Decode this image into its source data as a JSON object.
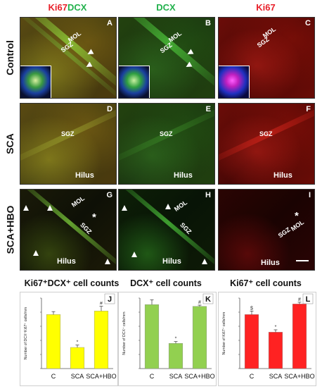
{
  "column_headers": {
    "merge": {
      "ki67": "Ki67",
      "dcx": "DCX"
    },
    "dcx": "DCX",
    "ki67": "Ki67"
  },
  "rows": [
    "Control",
    "SCA",
    "SCA+HBO"
  ],
  "panels": {
    "A": {
      "letter": "A",
      "labels": [
        "MOL",
        "SGZ"
      ]
    },
    "B": {
      "letter": "B",
      "labels": [
        "MOL",
        "SGZ"
      ]
    },
    "C": {
      "letter": "C",
      "labels": [
        "MOL",
        "SGZ"
      ]
    },
    "D": {
      "letter": "D",
      "labels": [
        "SGZ",
        "Hilus"
      ]
    },
    "E": {
      "letter": "E",
      "labels": [
        "SGZ",
        "Hilus"
      ]
    },
    "F": {
      "letter": "F",
      "labels": [
        "SGZ",
        "Hilus"
      ]
    },
    "G": {
      "letter": "G",
      "labels": [
        "MOL",
        "SGZ",
        "Hilus"
      ],
      "star": "*"
    },
    "H": {
      "letter": "H",
      "labels": [
        "MOL",
        "SGZ",
        "Hilus"
      ]
    },
    "I": {
      "letter": "I",
      "labels": [
        "MOL",
        "SGZ",
        "Hilus"
      ],
      "star": "*"
    }
  },
  "colors": {
    "ki67_red": "#e8202a",
    "dcx_green": "#22b14c",
    "bar_yellow": "#ffff00",
    "bar_green": "#92d050",
    "bar_red": "#ff2222"
  },
  "chart_titles": {
    "J": "Ki67⁺DCX⁺ cell counts",
    "K": "DCX⁺ cell counts",
    "L": "Ki67⁺ cell counts"
  },
  "chart_data": [
    {
      "type": "bar",
      "panel": "J",
      "title": "Ki67⁺DCX⁺ cell counts",
      "ylabel": "Number of DCX⁺Ki67⁺ cells/mm",
      "categories": [
        "C",
        "SCA",
        "SCA+HBO"
      ],
      "values": [
        46,
        18,
        49
      ],
      "errors": [
        2.5,
        2,
        4
      ],
      "significance": [
        "",
        "*",
        "#"
      ],
      "ylim": [
        0,
        60
      ],
      "color": "#ffff00"
    },
    {
      "type": "bar",
      "panel": "K",
      "title": "DCX⁺ cell counts",
      "ylabel": "Number of DCX⁺ cells/mm",
      "categories": [
        "C",
        "SCA",
        "SCA+HBO"
      ],
      "values": [
        109,
        43,
        106
      ],
      "errors": [
        8,
        3,
        2
      ],
      "significance": [
        "",
        "*",
        "#"
      ],
      "ylim": [
        0,
        120
      ],
      "color": "#92d050"
    },
    {
      "type": "bar",
      "panel": "L",
      "title": "Ki67⁺ cell counts",
      "ylabel": "Number of Ki67⁺ cells/mm",
      "categories": [
        "C",
        "SCA",
        "SCA+HBO"
      ],
      "values": [
        46,
        31,
        55
      ],
      "errors": [
        3,
        2,
        1.5
      ],
      "significance": [
        "$",
        "*",
        "#"
      ],
      "ylim": [
        0,
        60
      ],
      "color": "#ff2222"
    }
  ]
}
